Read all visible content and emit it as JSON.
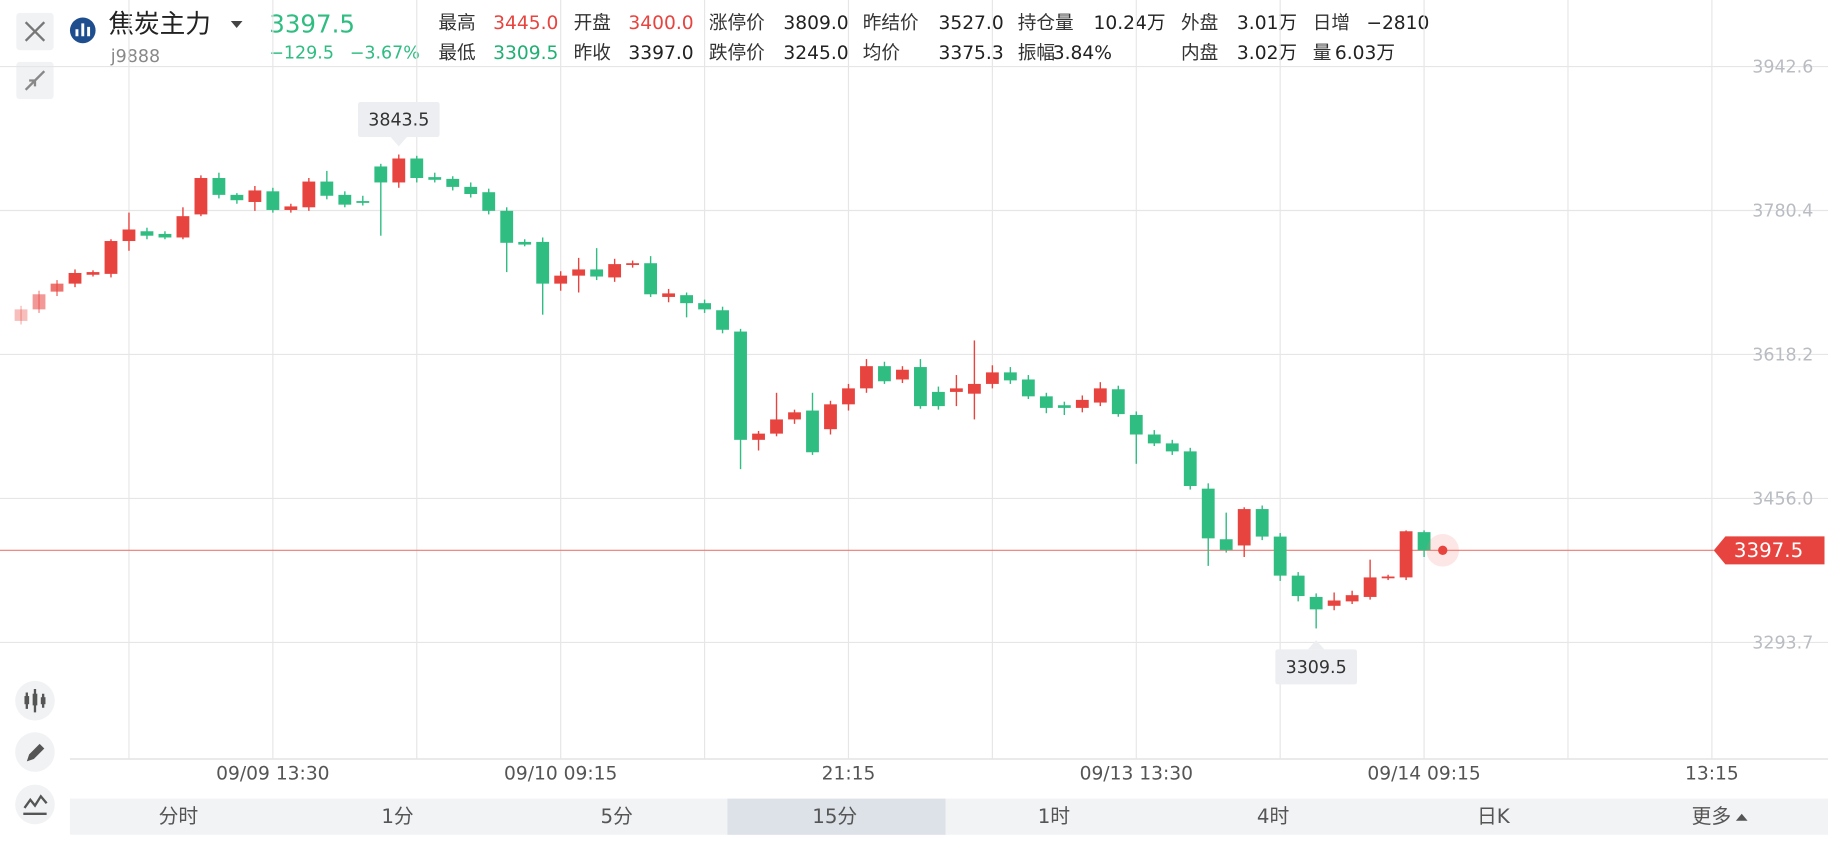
{
  "header": {
    "title": "焦炭主力",
    "code": "j9888",
    "change": "−129.5",
    "change_pct": "−3.67%",
    "stats": [
      [
        {
          "label": "最高",
          "value": "3445.0",
          "color": "#e8443f"
        },
        {
          "label": "最低",
          "value": "3309.5",
          "color": "#21b074"
        }
      ],
      [
        {
          "label": "开盘",
          "value": "3400.0",
          "color": "#e8443f"
        },
        {
          "label": "昨收",
          "value": "3397.0",
          "color": "#222222"
        }
      ],
      [
        {
          "label": "涨停价",
          "value": "3809.0",
          "color": "#222222"
        },
        {
          "label": "跌停价",
          "value": "3245.0",
          "color": "#222222"
        }
      ],
      [
        {
          "label": "昨结价",
          "value": "3527.0",
          "color": "#222222"
        },
        {
          "label": "均价",
          "value": "3375.3",
          "color": "#222222"
        }
      ],
      [
        {
          "label": "持仓量",
          "value": "10.24万",
          "color": "#222222"
        },
        {
          "label": "振幅",
          "value": "3.84%",
          "color": "#222222"
        }
      ],
      [
        {
          "label": "外盘",
          "value": "3.01万",
          "color": "#222222"
        },
        {
          "label": "内盘",
          "value": "3.02万",
          "color": "#222222"
        }
      ],
      [
        {
          "label": "日增",
          "value": "−2810",
          "color": "#222222"
        },
        {
          "label": "量",
          "value": "6.03万",
          "color": "#222222"
        }
      ]
    ]
  },
  "tabs": {
    "items": [
      "分时",
      "1分",
      "5分",
      "15分",
      "1时",
      "4时",
      "日K",
      "更多"
    ],
    "active": 3
  },
  "chart_data": {
    "type": "candlestick",
    "up_color": "#e8443f",
    "down_color": "#2fbd82",
    "grid": true,
    "last_price": 3397.5,
    "open": [
      3656,
      3669,
      3689,
      3698,
      3708,
      3709,
      3746,
      3757,
      3754,
      3750,
      3776,
      3817,
      3798,
      3790,
      3802,
      3781,
      3784,
      3813,
      3798,
      3791,
      3830,
      3812,
      3839,
      3818,
      3816,
      3807,
      3801,
      3780,
      3745,
      3745,
      3698,
      3707,
      3714,
      3705,
      3719,
      3721,
      3683,
      3685,
      3676,
      3668,
      3644,
      3522,
      3529,
      3545,
      3555,
      3534,
      3562,
      3580,
      3605,
      3590,
      3604,
      3576,
      3576,
      3574,
      3585,
      3598,
      3590,
      3571,
      3561,
      3558,
      3564,
      3579,
      3550,
      3528,
      3518,
      3509,
      3467,
      3410,
      3403,
      3444,
      3413,
      3369,
      3345,
      3335,
      3340,
      3345,
      3366,
      3367,
      3418
    ],
    "high": [
      3673,
      3690,
      3702,
      3714,
      3713,
      3748,
      3778,
      3761,
      3757,
      3784,
      3820,
      3823,
      3800,
      3808,
      3806,
      3788,
      3817,
      3825,
      3802,
      3797,
      3833,
      3843.5,
      3842,
      3823,
      3819,
      3812,
      3805,
      3784,
      3748,
      3750,
      3712,
      3727,
      3738,
      3726,
      3724,
      3729,
      3692,
      3688,
      3680,
      3672,
      3647,
      3532,
      3575,
      3556,
      3575,
      3566,
      3585,
      3613,
      3610,
      3605,
      3613,
      3582,
      3595,
      3634,
      3606,
      3604,
      3595,
      3575,
      3565,
      3572,
      3587,
      3583,
      3554,
      3533,
      3522,
      3513,
      3473,
      3440,
      3446,
      3448,
      3417,
      3373,
      3349,
      3350,
      3352,
      3387,
      3370,
      3420,
      3420
    ],
    "low": [
      3652,
      3665,
      3684,
      3694,
      3706,
      3705,
      3735,
      3748,
      3748,
      3748,
      3774,
      3794,
      3788,
      3780,
      3778,
      3778,
      3780,
      3793,
      3784,
      3786,
      3752,
      3806,
      3812,
      3812,
      3803,
      3795,
      3776,
      3711,
      3740,
      3663,
      3690,
      3688,
      3702,
      3700,
      3716,
      3683,
      3677,
      3660,
      3665,
      3642,
      3489,
      3510,
      3526,
      3540,
      3505,
      3528,
      3555,
      3575,
      3585,
      3586,
      3557,
      3556,
      3560,
      3545,
      3580,
      3585,
      3568,
      3552,
      3550,
      3553,
      3560,
      3548,
      3495,
      3515,
      3505,
      3466,
      3380,
      3395,
      3390,
      3409,
      3363,
      3340,
      3309.5,
      3330,
      3337,
      3342,
      3364,
      3364,
      3390
    ],
    "close": [
      3669,
      3686,
      3698,
      3710,
      3711,
      3746,
      3759,
      3752,
      3750,
      3774,
      3817,
      3798,
      3792,
      3803,
      3781,
      3785,
      3813,
      3797,
      3787,
      3789,
      3812,
      3839,
      3817,
      3815,
      3807,
      3799,
      3780,
      3744,
      3742,
      3698,
      3707,
      3714,
      3706,
      3720,
      3721,
      3686,
      3687,
      3676,
      3669,
      3646,
      3522,
      3529,
      3545,
      3553,
      3508,
      3562,
      3580,
      3605,
      3588,
      3601,
      3560,
      3560,
      3580,
      3585,
      3598,
      3589,
      3571,
      3558,
      3558,
      3567,
      3580,
      3551,
      3528,
      3518,
      3509,
      3470,
      3411,
      3398,
      3444,
      3413,
      3369,
      3346,
      3331,
      3341,
      3347,
      3367,
      3368,
      3419,
      3397.5
    ],
    "annotations": [
      {
        "x": 21,
        "value": 3843.5,
        "side": "above"
      },
      {
        "x": 72,
        "value": 3309.5,
        "side": "below"
      }
    ],
    "xlim": [
      -1.17,
      95.4
    ],
    "xticks": [
      {
        "value": 14,
        "label": "09/09 13:30"
      },
      {
        "value": 30,
        "label": "09/10 09:15"
      },
      {
        "value": 46,
        "label": "21:15"
      },
      {
        "value": 62,
        "label": "09/13 13:30"
      },
      {
        "value": 78,
        "label": "09/14 09:15"
      },
      {
        "value": 94,
        "label": "13:15"
      }
    ],
    "ylim": [
      3162.4,
      4017.5
    ],
    "yticks": [
      {
        "value": 3942.6,
        "label": "3942.6"
      },
      {
        "value": 3780.4,
        "label": "3780.4"
      },
      {
        "value": 3618.2,
        "label": "3618.2"
      },
      {
        "value": 3456,
        "label": "3456.0"
      },
      {
        "value": 3293.7,
        "label": "3293.7"
      }
    ]
  }
}
